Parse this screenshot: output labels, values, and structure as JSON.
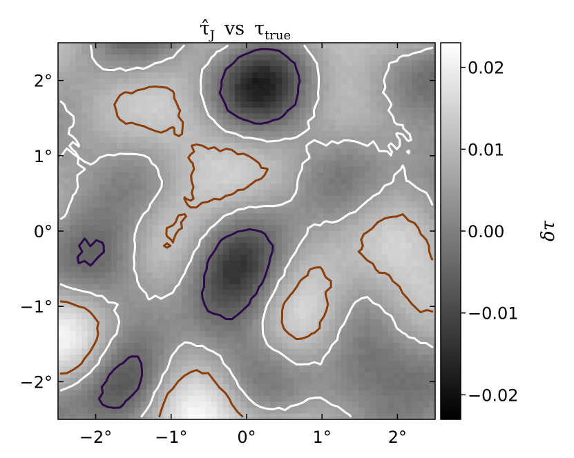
{
  "chart_data": {
    "type": "heatmap",
    "title": "τ̂J vs τtrue",
    "title_parts": {
      "main": "τ̂",
      "sub1": "J",
      "mid": "vs",
      "tau": "τ",
      "sub2": "true"
    },
    "xlim": [
      -2.5,
      2.5
    ],
    "ylim": [
      -2.5,
      2.5
    ],
    "x_ticks": [
      {
        "value": -2,
        "label": "−2°"
      },
      {
        "value": -1,
        "label": "−1°"
      },
      {
        "value": 0,
        "label": "0°"
      },
      {
        "value": 1,
        "label": "1°"
      },
      {
        "value": 2,
        "label": "2°"
      }
    ],
    "y_ticks": [
      {
        "value": 2,
        "label": "2°"
      },
      {
        "value": 1,
        "label": "1°"
      },
      {
        "value": 0,
        "label": "0°"
      },
      {
        "value": -1,
        "label": "−1°"
      },
      {
        "value": -2,
        "label": "−2°"
      }
    ],
    "colorbar": {
      "label": "δτ",
      "range": [
        -0.023,
        0.023
      ],
      "ticks": [
        {
          "value": 0.02,
          "label": "0.02"
        },
        {
          "value": 0.01,
          "label": "0.01"
        },
        {
          "value": 0.0,
          "label": "0.00"
        },
        {
          "value": -0.01,
          "label": "−0.01"
        },
        {
          "value": -0.02,
          "label": "−0.02"
        }
      ],
      "colormap": "gray"
    },
    "contour_colors": {
      "white": "#ffffff",
      "orange": "#8b3f0a",
      "purple": "#2d0a4a"
    }
  }
}
